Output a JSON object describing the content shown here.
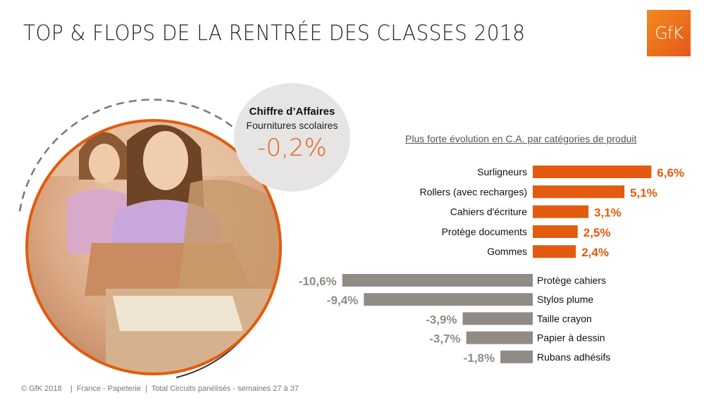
{
  "header": {
    "title": "TOP & FLOPS DE LA RENTRÉE DES CLASSES 2018",
    "logo_text": "GfK"
  },
  "kpi": {
    "title": "Chiffre d’Affaires",
    "subtitle": "Fournitures scolaires",
    "value": "-0,2%"
  },
  "chart_subtitle": "Plus forte évolution en C.A. par catégories de produit",
  "colors": {
    "positive": "#e35b0e",
    "negative": "#918b86",
    "accent": "#e8601a"
  },
  "chart_data": {
    "type": "bar",
    "orientation": "horizontal",
    "title": "Plus forte évolution en C.A. par catégories de produit",
    "top": {
      "categories": [
        "Surligneurs",
        "Rollers (avec recharges)",
        "Cahiers d'écriture",
        "Protège documents",
        "Gommes"
      ],
      "values": [
        6.6,
        5.1,
        3.1,
        2.5,
        2.4
      ],
      "labels": [
        "6,6%",
        "5,1%",
        "3,1%",
        "2,5%",
        "2,4%"
      ]
    },
    "flop": {
      "categories": [
        "Protège cahiers",
        "Stylos plume",
        "Taille crayon",
        "Papier à dessin",
        "Rubans adhésifs"
      ],
      "values": [
        -10.6,
        -9.4,
        -3.9,
        -3.7,
        -1.8
      ],
      "labels": [
        "-10,6%",
        "-9,4%",
        "-3,9%",
        "-3,7%",
        "-1,8%"
      ]
    }
  },
  "footer": "© GfK 2018    |  France - Papeterie  |  Total Circuits panélisés - semaines 27 à 37"
}
